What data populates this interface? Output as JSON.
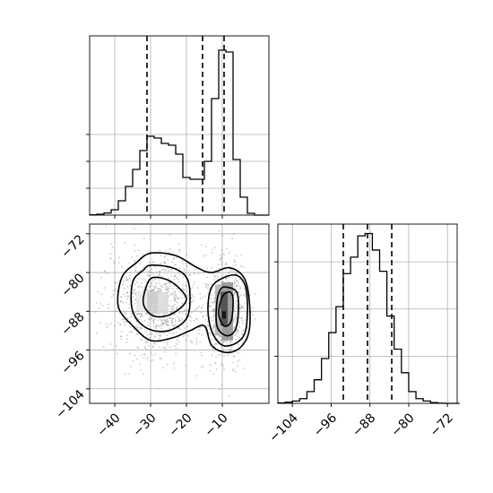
{
  "chart_data": {
    "type": "corner",
    "title": "",
    "grid": true,
    "axes": [
      {
        "label": "",
        "range": [
          -47,
          3
        ],
        "ticks": [
          -40,
          -30,
          -20,
          -10
        ],
        "tick_labels": [
          "−40",
          "−30",
          "−20",
          "−10"
        ]
      },
      {
        "label": "",
        "range": [
          -107,
          -70
        ],
        "ticks": [
          -104,
          -96,
          -88,
          -80,
          -72
        ],
        "tick_labels": [
          "−104",
          "−96",
          "−88",
          "−80",
          "−72"
        ]
      }
    ],
    "histograms": [
      {
        "panel": "x",
        "type": "step",
        "bin_edges": [
          -47,
          -45,
          -43,
          -41,
          -39,
          -37,
          -35,
          -33,
          -31,
          -29,
          -27,
          -25,
          -23,
          -21,
          -19,
          -17,
          -15,
          -13,
          -11,
          -9,
          -7,
          -5,
          -3,
          -1,
          1,
          3
        ],
        "counts": [
          0.2,
          0.5,
          1.2,
          3.0,
          8.0,
          16.0,
          25.5,
          36.0,
          44.0,
          43.0,
          40.0,
          39.0,
          34.0,
          21.0,
          20.0,
          20.0,
          30.0,
          65.0,
          92.0,
          91.0,
          31.0,
          10.0,
          1.0,
          0,
          0
        ],
        "quantiles": [
          -31,
          -15.5,
          -9.5
        ],
        "yticks": [
          15,
          30,
          45
        ]
      },
      {
        "panel": "y",
        "type": "step",
        "bin_edges": [
          -107,
          -105.5,
          -104,
          -102.5,
          -101,
          -99.5,
          -98,
          -96.5,
          -95,
          -93.5,
          -92,
          -90.5,
          -89,
          -87.5,
          -86,
          -84.5,
          -83,
          -81.5,
          -80,
          -78.5,
          -77,
          -75.5,
          -74,
          -72.5,
          -71,
          -69.5
        ],
        "counts": [
          0.2,
          0.5,
          1.0,
          2.0,
          5.0,
          10.0,
          19.0,
          30.0,
          41.0,
          55.0,
          62.0,
          71.0,
          72.0,
          65.0,
          56.0,
          37.0,
          23.0,
          13.0,
          5.0,
          2.0,
          1.0,
          0.3,
          0.1,
          0,
          0
        ],
        "quantiles": [
          -93.5,
          -88.5,
          -83.5
        ],
        "yticks": [
          20,
          40,
          60
        ]
      }
    ],
    "scatter_2d": {
      "x_range": [
        -47,
        3
      ],
      "y_range": [
        -107,
        -70
      ],
      "clusters": [
        {
          "center": [
            -28,
            -86.5
          ],
          "spread": [
            7,
            5.5
          ],
          "share": 0.6
        },
        {
          "center": [
            -9,
            -88
          ],
          "spread": [
            2.8,
            5.5
          ],
          "share": 0.4
        }
      ],
      "density_cells": [
        {
          "x": [
            -31,
            -28
          ],
          "y": [
            -88.5,
            -84
          ],
          "level": 0.2
        },
        {
          "x": [
            -28,
            -25
          ],
          "y": [
            -88.5,
            -84
          ],
          "level": 0.14
        },
        {
          "x": [
            -34,
            -31
          ],
          "y": [
            -88,
            -84
          ],
          "level": 0.08
        },
        {
          "x": [
            -12,
            -10
          ],
          "y": [
            -93,
            -82.5
          ],
          "level": 0.3
        },
        {
          "x": [
            -10,
            -7
          ],
          "y": [
            -94,
            -82
          ],
          "level": 0.42
        },
        {
          "x": [
            -10.5,
            -8.5
          ],
          "y": [
            -91,
            -84
          ],
          "level": 0.7
        },
        {
          "x": [
            -10,
            -9
          ],
          "y": [
            -89.5,
            -88
          ],
          "level": 0.95
        }
      ],
      "contours": [
        {
          "points": [
            [
              -30,
              -76
            ],
            [
              -23,
              -76.5
            ],
            [
              -17,
              -79
            ],
            [
              -13,
              -80
            ],
            [
              -8,
              -79
            ],
            [
              -4,
              -81
            ],
            [
              -2.5,
              -85.5
            ],
            [
              -2.5,
              -92
            ],
            [
              -5,
              -95.5
            ],
            [
              -9,
              -96.5
            ],
            [
              -13,
              -95
            ],
            [
              -15,
              -91
            ],
            [
              -19,
              -92
            ],
            [
              -24,
              -93.5
            ],
            [
              -30,
              -94
            ],
            [
              -35,
              -91
            ],
            [
              -39,
              -87
            ],
            [
              -38,
              -81
            ],
            [
              -34,
              -78
            ]
          ]
        },
        {
          "points": [
            [
              -30,
              -78.5
            ],
            [
              -24,
              -79
            ],
            [
              -20,
              -81
            ],
            [
              -19,
              -85
            ],
            [
              -20,
              -89.5
            ],
            [
              -25,
              -92
            ],
            [
              -31,
              -91.5
            ],
            [
              -35,
              -88
            ],
            [
              -35,
              -82
            ],
            [
              -32,
              -79.5
            ]
          ]
        },
        {
          "points": [
            [
              -7,
              -80.5
            ],
            [
              -4,
              -82
            ],
            [
              -3,
              -86
            ],
            [
              -3.5,
              -92
            ],
            [
              -6,
              -94.5
            ],
            [
              -10,
              -95
            ],
            [
              -13,
              -92
            ],
            [
              -14,
              -87
            ],
            [
              -12.5,
              -82.5
            ]
          ]
        },
        {
          "points": [
            [
              -29,
              -81
            ],
            [
              -24,
              -82
            ],
            [
              -20,
              -85.5
            ],
            [
              -24,
              -88.5
            ],
            [
              -29,
              -89
            ],
            [
              -32,
              -86.5
            ],
            [
              -31,
              -82.5
            ]
          ]
        },
        {
          "points": [
            [
              -9,
              -83
            ],
            [
              -6,
              -84
            ],
            [
              -5.5,
              -88
            ],
            [
              -6.5,
              -92
            ],
            [
              -9,
              -93
            ],
            [
              -11.5,
              -91
            ],
            [
              -11.5,
              -86
            ],
            [
              -10.5,
              -83.5
            ]
          ]
        },
        {
          "points": [
            [
              -8,
              -84
            ],
            [
              -7,
              -85.5
            ],
            [
              -7.5,
              -90
            ],
            [
              -9.5,
              -91
            ],
            [
              -11,
              -88.5
            ],
            [
              -10,
              -85
            ]
          ]
        }
      ]
    }
  }
}
